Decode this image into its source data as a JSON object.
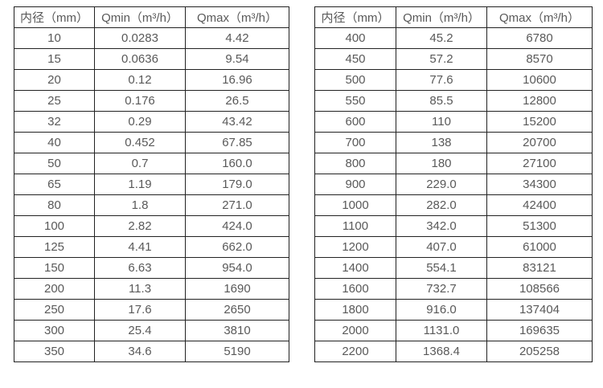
{
  "page": {
    "colors": {
      "background": "#ffffff",
      "border": "#222222",
      "text": "#595959"
    }
  },
  "tables": [
    {
      "name": "flow-table-small-diameters",
      "headers": [
        "内径（mm）",
        "Qmin（m³/h）",
        "Qmax（m³/h）"
      ],
      "rows": [
        [
          "10",
          "0.0283",
          "4.42"
        ],
        [
          "15",
          "0.0636",
          "9.54"
        ],
        [
          "20",
          "0.12",
          "16.96"
        ],
        [
          "25",
          "0.176",
          "26.5"
        ],
        [
          "32",
          "0.29",
          "43.42"
        ],
        [
          "40",
          "0.452",
          "67.85"
        ],
        [
          "50",
          "0.7",
          "160.0"
        ],
        [
          "65",
          "1.19",
          "179.0"
        ],
        [
          "80",
          "1.8",
          "271.0"
        ],
        [
          "100",
          "2.82",
          "424.0"
        ],
        [
          "125",
          "4.41",
          "662.0"
        ],
        [
          "150",
          "6.63",
          "954.0"
        ],
        [
          "200",
          "11.3",
          "1690"
        ],
        [
          "250",
          "17.6",
          "2650"
        ],
        [
          "300",
          "25.4",
          "3810"
        ],
        [
          "350",
          "34.6",
          "5190"
        ]
      ]
    },
    {
      "name": "flow-table-large-diameters",
      "headers": [
        "内径（mm）",
        "Qmin（m³/h）",
        "Qmax（m³/h）"
      ],
      "rows": [
        [
          "400",
          "45.2",
          "6780"
        ],
        [
          "450",
          "57.2",
          "8570"
        ],
        [
          "500",
          "77.6",
          "10600"
        ],
        [
          "550",
          "85.5",
          "12800"
        ],
        [
          "600",
          "110",
          "15200"
        ],
        [
          "700",
          "138",
          "20700"
        ],
        [
          "800",
          "180",
          "27100"
        ],
        [
          "900",
          "229.0",
          "34300"
        ],
        [
          "1000",
          "282.0",
          "42400"
        ],
        [
          "1100",
          "342.0",
          "51300"
        ],
        [
          "1200",
          "407.0",
          "61000"
        ],
        [
          "1400",
          "554.1",
          "83121"
        ],
        [
          "1600",
          "732.7",
          "108566"
        ],
        [
          "1800",
          "916.0",
          "137404"
        ],
        [
          "2000",
          "1131.0",
          "169635"
        ],
        [
          "2200",
          "1368.4",
          "205258"
        ]
      ]
    }
  ]
}
